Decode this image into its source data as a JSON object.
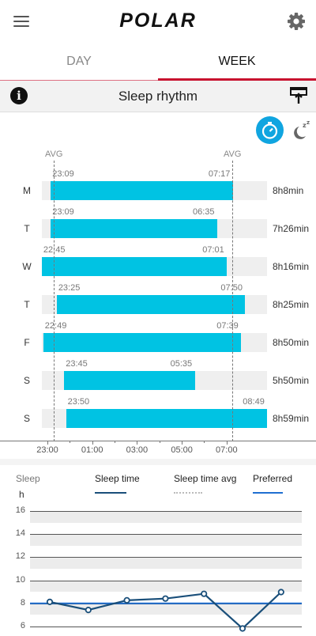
{
  "header": {
    "logo_text": "POLAR",
    "menu_icon": "hamburger-menu-icon",
    "settings_icon": "gear-icon"
  },
  "tabs": [
    {
      "label": "DAY",
      "selected": false
    },
    {
      "label": "WEEK",
      "selected": true
    }
  ],
  "accent_color": "#c8102e",
  "bar_color": "#00c3e3",
  "section": {
    "title": "Sleep rhythm",
    "info_icon": "info-icon",
    "export_icon": "export-icon"
  },
  "toggles": {
    "clock_icon": "stopwatch-icon",
    "sleep_icon": "moon-zz-icon",
    "selected": "clock"
  },
  "avg_label": "AVG",
  "rhythm_axis": [
    "23:00",
    "01:00",
    "03:00",
    "05:00",
    "07:00"
  ],
  "rhythm_rows": [
    {
      "day": "M",
      "start": "23:09",
      "end": "07:17",
      "duration": "8h8min"
    },
    {
      "day": "T",
      "start": "23:09",
      "end": "06:35",
      "duration": "7h26min"
    },
    {
      "day": "W",
      "start": "22:45",
      "end": "07:01",
      "duration": "8h16min"
    },
    {
      "day": "T",
      "start": "23:25",
      "end": "07:50",
      "duration": "8h25min"
    },
    {
      "day": "F",
      "start": "22:49",
      "end": "07:39",
      "duration": "8h50min"
    },
    {
      "day": "S",
      "start": "23:45",
      "end": "05:35",
      "duration": "5h50min"
    },
    {
      "day": "S",
      "start": "23:50",
      "end": "08:49",
      "duration": "8h59min"
    }
  ],
  "sleep_chart": {
    "legend_title": "Sleep",
    "unit": "h",
    "legend": [
      {
        "label": "Sleep time",
        "color": "#1a4f7a"
      },
      {
        "label": "Sleep time avg",
        "color": "#bbbbbb"
      },
      {
        "label": "Preferred",
        "color": "#1f6fd1"
      }
    ],
    "y_ticks": [
      "16",
      "14",
      "12",
      "10",
      "8",
      "6"
    ]
  },
  "chart_data": {
    "type": "line",
    "title": "",
    "xlabel": "",
    "ylabel": "h",
    "ylim": [
      6,
      16
    ],
    "series": [
      {
        "name": "Sleep time",
        "values": [
          8.13,
          7.43,
          8.27,
          8.42,
          8.83,
          5.83,
          8.98
        ]
      },
      {
        "name": "Preferred",
        "values": [
          8,
          8,
          8,
          8,
          8,
          8,
          8
        ]
      }
    ],
    "grid": true
  }
}
